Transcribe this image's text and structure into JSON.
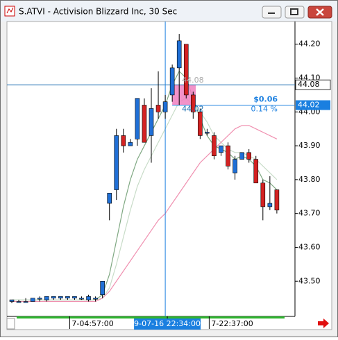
{
  "window_title": "S.ATVI - Activision Blizzard Inc, 30 Sec",
  "chart_data": {
    "type": "candlestick",
    "categories": [
      null,
      null,
      null,
      null,
      null,
      null,
      null,
      null,
      "7-04:57:00",
      null,
      null,
      null,
      null,
      null,
      null,
      null,
      null,
      null,
      null,
      null,
      null,
      null,
      "9-07-16 22:34:00",
      null,
      null,
      null,
      null,
      null,
      "7-22:37:00",
      null,
      null,
      null,
      null,
      null,
      null,
      null,
      null,
      null,
      null
    ],
    "cursor_category": 22,
    "open": [
      43.44,
      43.44,
      43.44,
      43.44,
      43.45,
      43.445,
      43.45,
      43.45,
      43.45,
      43.45,
      43.45,
      43.445,
      43.45,
      43.46,
      43.73,
      43.77,
      43.93,
      43.9,
      43.92,
      44.02,
      43.93,
      44.02,
      44.0,
      44.05,
      44.13,
      44.2,
      44.05,
      44.0,
      43.94,
      43.93,
      43.88,
      43.9,
      43.82,
      43.86,
      43.88,
      43.86,
      43.79,
      43.72,
      43.77
    ],
    "high": [
      43.445,
      43.445,
      43.45,
      43.45,
      43.455,
      43.455,
      43.455,
      43.455,
      43.455,
      43.455,
      43.455,
      43.46,
      43.455,
      43.5,
      43.76,
      43.95,
      43.95,
      43.92,
      44.04,
      44.04,
      44.07,
      44.12,
      44.05,
      44.14,
      44.23,
      44.2,
      44.06,
      44.01,
      43.95,
      43.94,
      43.9,
      43.91,
      43.87,
      43.88,
      43.89,
      43.87,
      43.8,
      43.81,
      43.77
    ],
    "low": [
      43.435,
      43.44,
      43.44,
      43.44,
      43.44,
      43.44,
      43.445,
      43.445,
      43.445,
      43.445,
      43.445,
      43.44,
      43.44,
      43.45,
      43.68,
      43.74,
      43.88,
      43.9,
      43.9,
      43.91,
      43.85,
      43.98,
      43.98,
      44.03,
      44.02,
      44.04,
      43.98,
      43.92,
      43.93,
      43.86,
      43.87,
      43.83,
      43.8,
      43.86,
      43.85,
      43.79,
      43.68,
      43.71,
      43.7
    ],
    "close": [
      43.445,
      43.44,
      43.44,
      43.45,
      43.45,
      43.455,
      43.455,
      43.455,
      43.455,
      43.455,
      43.45,
      43.455,
      43.45,
      43.5,
      43.76,
      43.93,
      43.9,
      43.91,
      44.04,
      43.91,
      44.01,
      44.0,
      44.03,
      44.13,
      44.21,
      44.05,
      44.0,
      43.93,
      43.94,
      43.87,
      43.9,
      43.84,
      43.86,
      43.88,
      43.86,
      43.79,
      43.72,
      43.73,
      43.71
    ],
    "up_color": "#1f6fd6",
    "down_color": "#d42222",
    "series": [
      {
        "color": "#7fa882",
        "values": [
          43.445,
          43.445,
          43.445,
          43.445,
          43.445,
          43.445,
          43.445,
          43.445,
          43.445,
          43.445,
          43.445,
          43.445,
          43.445,
          43.46,
          43.52,
          43.62,
          43.72,
          43.8,
          43.86,
          43.9,
          43.94,
          43.98,
          44.02,
          44.08,
          44.12,
          44.1,
          44.04,
          43.98,
          43.93,
          43.9,
          43.89,
          43.88,
          43.86,
          43.87,
          43.86,
          43.84,
          43.8,
          43.79,
          43.77
        ]
      },
      {
        "color": "#c8dcc8",
        "values": [
          43.445,
          43.445,
          43.445,
          43.445,
          43.445,
          43.445,
          43.445,
          43.445,
          43.445,
          43.445,
          43.445,
          43.445,
          43.445,
          43.45,
          43.48,
          43.55,
          43.63,
          43.71,
          43.78,
          43.83,
          43.87,
          43.91,
          43.95,
          43.99,
          44.03,
          44.04,
          44.02,
          44.0,
          43.97,
          43.93,
          43.91,
          43.89,
          43.88,
          43.88,
          43.87,
          43.86,
          43.84,
          43.82,
          43.8
        ]
      },
      {
        "color": "#f090b0",
        "values": [
          43.44,
          43.44,
          43.44,
          43.44,
          43.44,
          43.44,
          43.44,
          43.44,
          43.44,
          43.44,
          43.44,
          43.44,
          43.44,
          43.45,
          43.47,
          43.5,
          43.53,
          43.56,
          43.59,
          43.62,
          43.65,
          43.68,
          43.7,
          43.73,
          43.76,
          43.79,
          43.82,
          43.85,
          43.87,
          43.89,
          43.91,
          43.93,
          43.95,
          43.96,
          43.96,
          43.95,
          43.94,
          43.93,
          43.92
        ]
      }
    ],
    "ylim": [
      43.396,
      44.267
    ],
    "yticks": [
      {
        "value": 43.5,
        "label": "43.50"
      },
      {
        "value": 43.6,
        "label": "43.60"
      },
      {
        "value": 43.7,
        "label": "43.70"
      },
      {
        "value": 43.8,
        "label": "43.80"
      },
      {
        "value": 43.9,
        "label": "43.90"
      },
      {
        "value": 44,
        "label": "44.00"
      },
      {
        "value": 44.1,
        "label": "44.10"
      },
      {
        "value": 44.2,
        "label": "44.20"
      }
    ],
    "cursor_price": 44.08,
    "measure": {
      "from": 44.08,
      "to": 44.02,
      "change": 0.06,
      "change_label": "$0.06",
      "percent": 0.14,
      "percent_label": "0.14 %"
    }
  }
}
